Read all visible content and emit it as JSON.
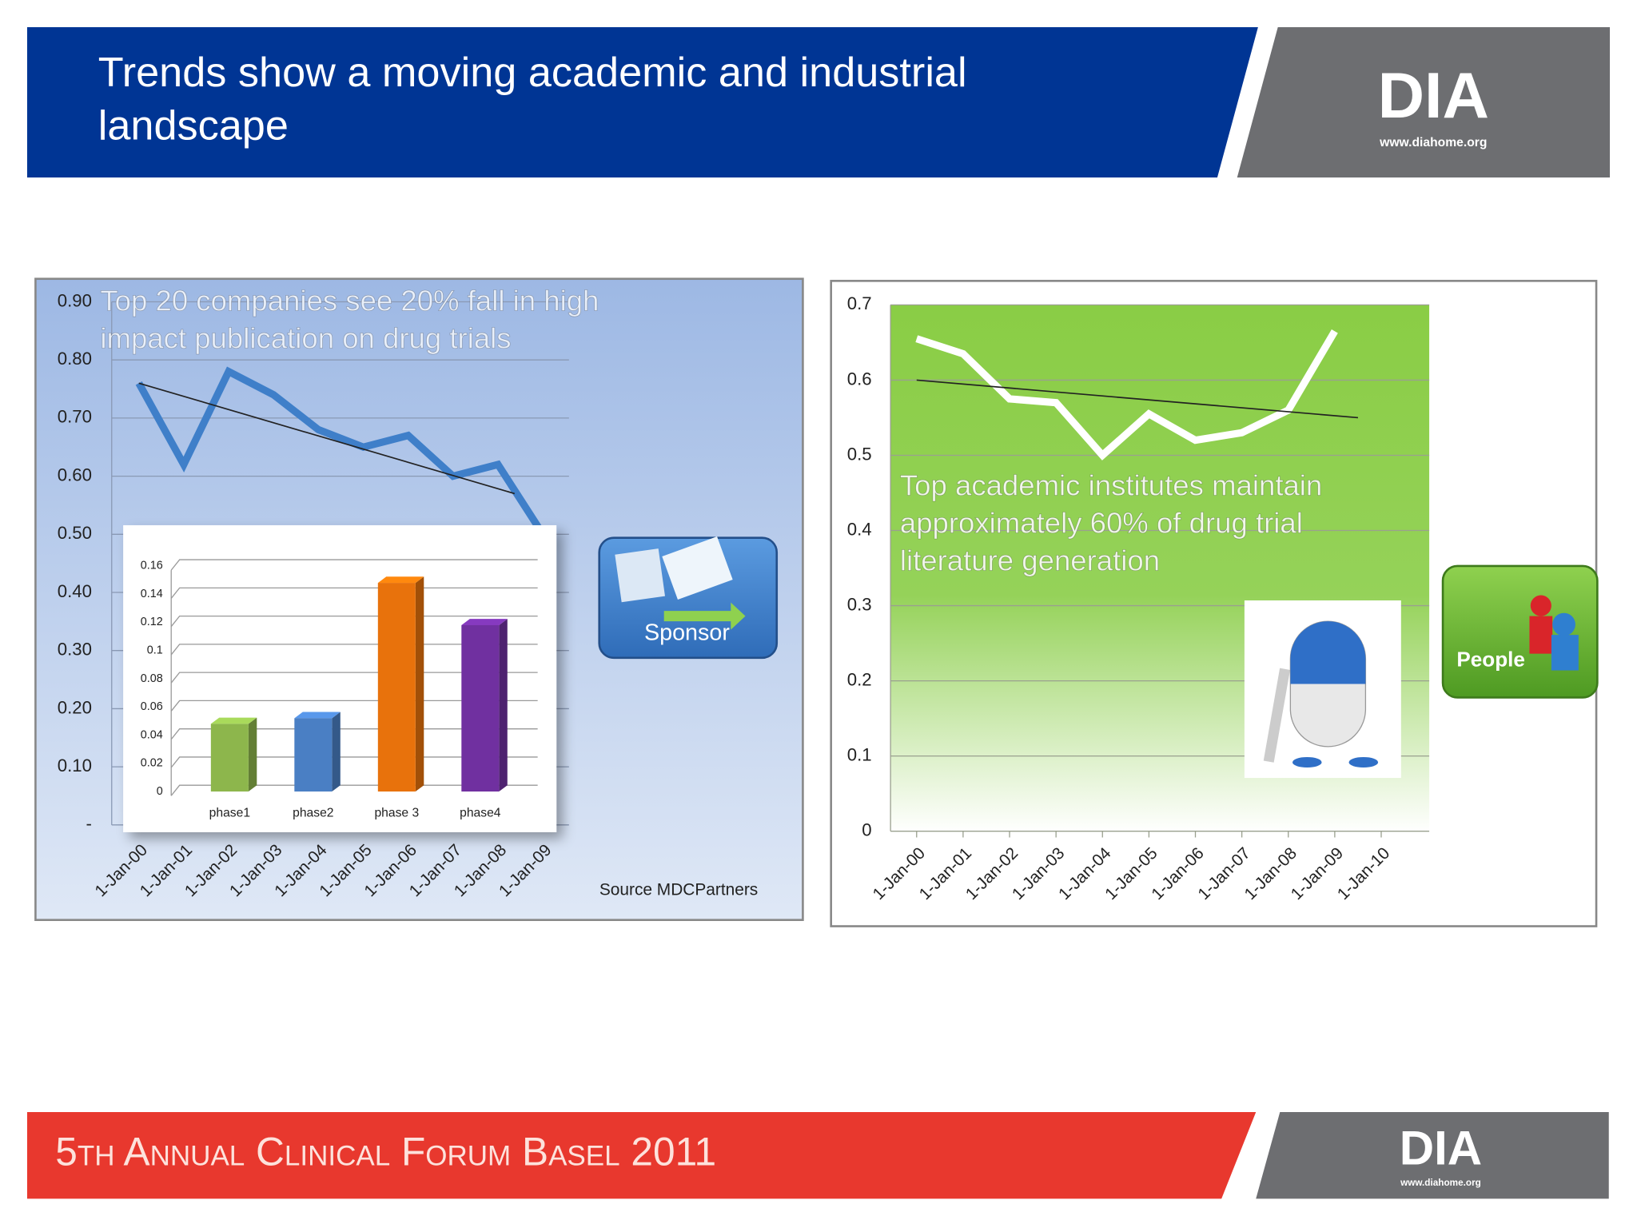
{
  "header": {
    "title": [
      "Trends show a moving academic and industrial",
      "landscape"
    ]
  },
  "logo": {
    "name": "DIA",
    "url": "www.diahome.org"
  },
  "footer": {
    "text": "5th Annual Clinical Forum Basel 2011"
  },
  "badges": {
    "sponsor": "Sponsor",
    "people": "People"
  },
  "chart_data": [
    {
      "type": "line",
      "annotation": [
        "Top 20 companies see 20% fall in high",
        "impact publication on drug trials"
      ],
      "source": "Source MDCPartners",
      "categories": [
        "1-Jan-00",
        "1-Jan-01",
        "1-Jan-02",
        "1-Jan-03",
        "1-Jan-04",
        "1-Jan-05",
        "1-Jan-06",
        "1-Jan-07",
        "1-Jan-08",
        "1-Jan-09"
      ],
      "series": [
        {
          "color": "#3f7fc9",
          "values": [
            0.76,
            0.62,
            0.78,
            0.74,
            0.68,
            0.65,
            0.67,
            0.6,
            0.62,
            0.5
          ]
        }
      ],
      "trendline": [
        0.76,
        0.57
      ],
      "ylim": [
        0,
        0.9
      ],
      "yticks": [
        {
          "value": 0,
          "label": "-"
        },
        {
          "value": 0.1,
          "label": "0.10"
        },
        {
          "value": 0.2,
          "label": "0.20"
        },
        {
          "value": 0.3,
          "label": "0.30"
        },
        {
          "value": 0.4,
          "label": "0.40"
        },
        {
          "value": 0.5,
          "label": "0.50"
        },
        {
          "value": 0.6,
          "label": "0.60"
        },
        {
          "value": 0.7,
          "label": "0.70"
        },
        {
          "value": 0.8,
          "label": "0.80"
        },
        {
          "value": 0.9,
          "label": "0.90"
        }
      ],
      "grid": true
    },
    {
      "type": "bar",
      "categories": [
        "phase1",
        "phase2",
        "phase 3",
        "phase4"
      ],
      "values": [
        0.048,
        0.052,
        0.148,
        0.118
      ],
      "colors": [
        "#8db64c",
        "#4a7fc4",
        "#e8720c",
        "#7030a0"
      ],
      "ylim": [
        0,
        0.16
      ],
      "yticks": [
        0,
        0.02,
        0.04,
        0.06,
        0.08,
        0.1,
        0.12,
        0.14,
        0.16
      ],
      "grid": true
    },
    {
      "type": "line",
      "annotation": [
        "Top academic institutes maintain",
        "approximately 60% of drug trial",
        "literature generation"
      ],
      "categories": [
        "1-Jan-00",
        "1-Jan-01",
        "1-Jan-02",
        "1-Jan-03",
        "1-Jan-04",
        "1-Jan-05",
        "1-Jan-06",
        "1-Jan-07",
        "1-Jan-08",
        "1-Jan-09",
        "1-Jan-10"
      ],
      "series": [
        {
          "color": "#ffffff",
          "values": [
            0.655,
            0.635,
            0.575,
            0.57,
            0.5,
            0.555,
            0.52,
            0.53,
            0.56,
            0.665,
            null
          ]
        }
      ],
      "trendline": [
        0.6,
        0.55
      ],
      "ylim": [
        0,
        0.7
      ],
      "yticks": [
        0,
        0.1,
        0.2,
        0.3,
        0.4,
        0.5,
        0.6,
        0.7
      ],
      "grid": true
    }
  ]
}
